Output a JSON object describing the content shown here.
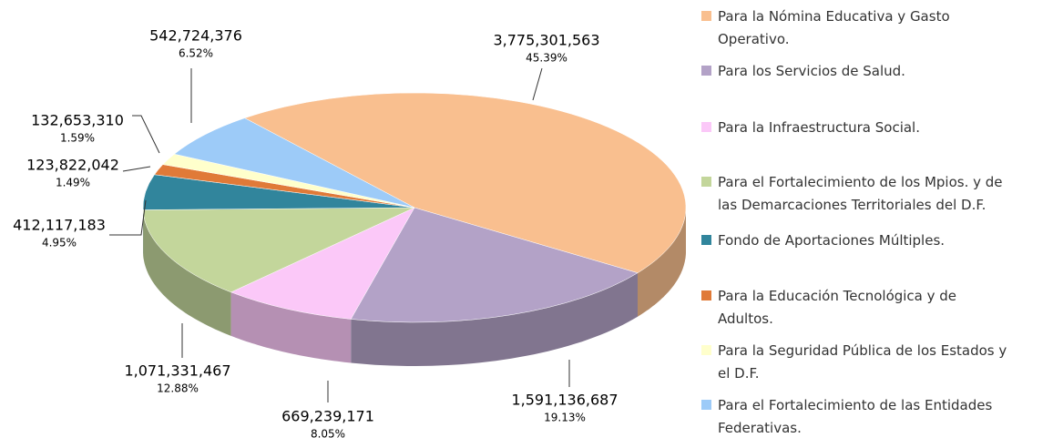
{
  "chart_data": {
    "type": "pie",
    "categories": [
      "Para la Nómina Educativa y Gasto\nOperativo.",
      "Para los Servicios de Salud.",
      "Para la Infraestructura Social.",
      "Para el Fortalecimiento de los Mpios. y de\nlas Demarcaciones Territoriales del D.F.",
      "Fondo de Aportaciones Múltiples.",
      "Para la Educación Tecnológica y de\nAdultos.",
      "Para la Seguridad Pública de los Estados y\nel D.F.",
      "Para el Fortalecimiento de las Entidades\nFederativas."
    ],
    "values": [
      3775301563,
      1591136687,
      669239171,
      1071331467,
      412117183,
      123822042,
      132653310,
      542724376
    ],
    "value_labels": [
      "3,775,301,563",
      "1,591,136,687",
      "669,239,171",
      "1,071,331,467",
      "412,117,183",
      "123,822,042",
      "132,653,310",
      "542,724,376"
    ],
    "shares": [
      45.39,
      19.13,
      8.05,
      12.88,
      4.95,
      1.49,
      1.59,
      6.52
    ],
    "share_labels": [
      "45.39%",
      "19.13%",
      "8.05%",
      "12.88%",
      "4.95%",
      "1.49%",
      "1.59%",
      "6.52%"
    ],
    "colors": [
      "#f9bf8f",
      "#b3a2c7",
      "#fbc8f8",
      "#c3d69b",
      "#31859c",
      "#e07a38",
      "#ffffcc",
      "#9dcbf8"
    ]
  }
}
